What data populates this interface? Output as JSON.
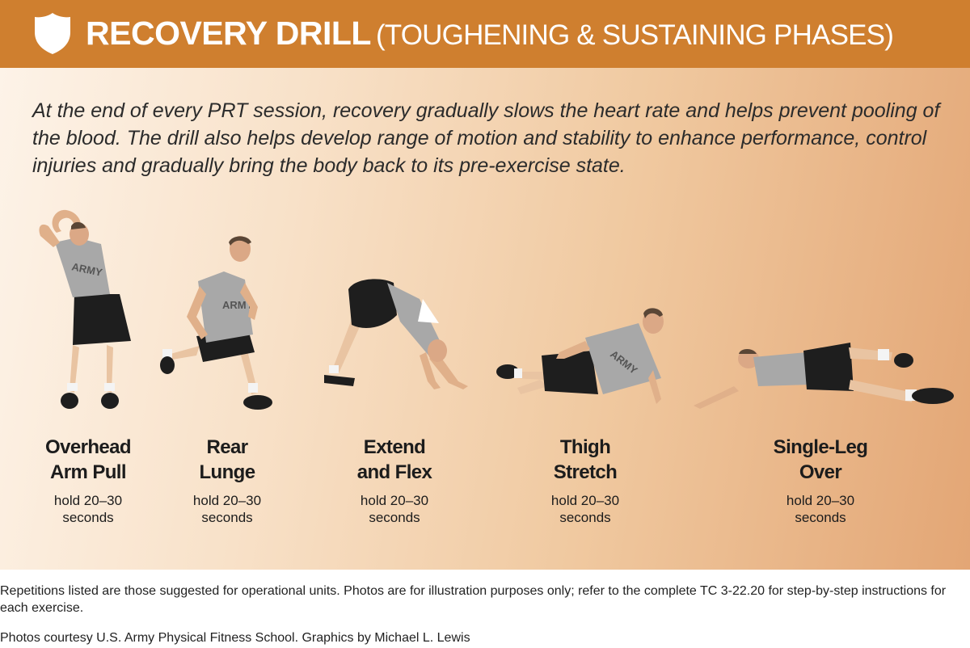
{
  "header": {
    "title_main": "RECOVERY DRILL",
    "title_sub": "(TOUGHENING & SUSTAINING PHASES)",
    "icon": "shield-icon",
    "bg_color": "#cf7f2f"
  },
  "intro": "At the end of every PRT session, recovery gradually slows the heart rate and helps prevent pooling of the blood. The drill also helps develop range of motion and stability to enhance performance, control injuries and gradually bring the body back to its pre-exercise state.",
  "exercises": [
    {
      "name_line1": "Overhead",
      "name_line2": "Arm Pull",
      "hold_line1": "hold 20–30",
      "hold_line2": "seconds",
      "shirt_text": "ARMY"
    },
    {
      "name_line1": "Rear",
      "name_line2": "Lunge",
      "hold_line1": "hold 20–30",
      "hold_line2": "seconds",
      "shirt_text": "ARMY"
    },
    {
      "name_line1": "Extend",
      "name_line2": "and Flex",
      "hold_line1": "hold 20–30",
      "hold_line2": "seconds"
    },
    {
      "name_line1": "Thigh",
      "name_line2": "Stretch",
      "hold_line1": "hold 20–30",
      "hold_line2": "seconds",
      "shirt_text": "ARMY"
    },
    {
      "name_line1": "Single-Leg",
      "name_line2": "Over",
      "hold_line1": "hold 20–30",
      "hold_line2": "seconds"
    }
  ],
  "footnote": "Repetitions listed are those suggested for operational units. Photos are for illustration purposes only; refer to the complete TC 3-22.20 for step-by-step instructions for each exercise.",
  "credit": "Photos courtesy U.S. Army Physical Fitness School. Graphics by Michael L. Lewis"
}
